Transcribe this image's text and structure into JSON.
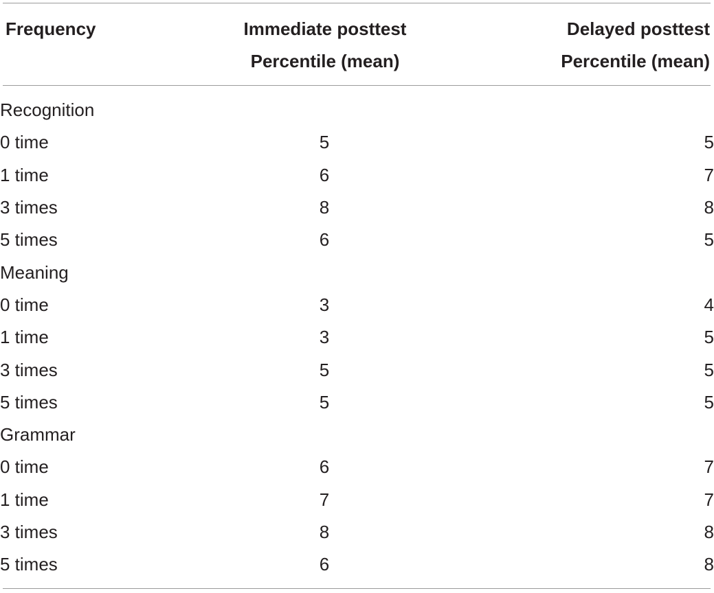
{
  "table": {
    "headers": {
      "frequency": "Frequency",
      "immediate_line1": "Immediate posttest",
      "immediate_line2": "Percentile (mean)",
      "delayed_line1": "Delayed posttest",
      "delayed_line2": "Percentile (mean)"
    },
    "sections": [
      {
        "name": "Recognition",
        "rows": [
          {
            "frequency": "0 time",
            "immediate": "5",
            "delayed": "5"
          },
          {
            "frequency": "1 time",
            "immediate": "6",
            "delayed": "7"
          },
          {
            "frequency": "3 times",
            "immediate": "8",
            "delayed": "8"
          },
          {
            "frequency": "5 times",
            "immediate": "6",
            "delayed": "5"
          }
        ]
      },
      {
        "name": "Meaning",
        "rows": [
          {
            "frequency": "0 time",
            "immediate": "3",
            "delayed": "4"
          },
          {
            "frequency": "1 time",
            "immediate": "3",
            "delayed": "5"
          },
          {
            "frequency": "3 times",
            "immediate": "5",
            "delayed": "5"
          },
          {
            "frequency": "5 times",
            "immediate": "5",
            "delayed": "5"
          }
        ]
      },
      {
        "name": "Grammar",
        "rows": [
          {
            "frequency": "0 time",
            "immediate": "6",
            "delayed": "7"
          },
          {
            "frequency": "1 time",
            "immediate": "7",
            "delayed": "7"
          },
          {
            "frequency": "3 times",
            "immediate": "8",
            "delayed": "8"
          },
          {
            "frequency": "5 times",
            "immediate": "6",
            "delayed": "8"
          }
        ]
      }
    ]
  }
}
